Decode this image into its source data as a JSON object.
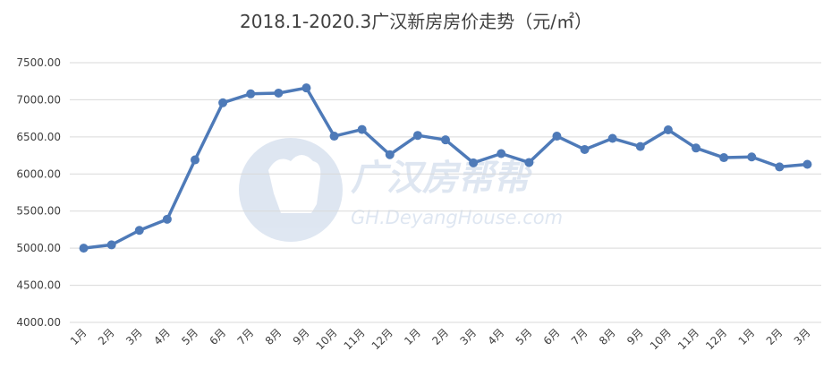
{
  "chart_data": {
    "type": "line",
    "title": "2018.1-2020.3广汉新房房价走势（元/㎡）",
    "xlabel": "",
    "ylabel": "",
    "categories": [
      "1月",
      "2月",
      "3月",
      "4月",
      "5月",
      "6月",
      "7月",
      "8月",
      "9月",
      "10月",
      "11月",
      "12月",
      "1月",
      "2月",
      "3月",
      "4月",
      "5月",
      "6月",
      "7月",
      "8月",
      "9月",
      "10月",
      "11月",
      "12月",
      "1月",
      "2月",
      "3月"
    ],
    "series": [
      {
        "values": [
          5000,
          5045,
          5240,
          5390,
          6190,
          6960,
          7080,
          7090,
          7160,
          6510,
          6600,
          6260,
          6520,
          6460,
          6150,
          6275,
          6155,
          6510,
          6330,
          6480,
          6370,
          6595,
          6350,
          6220,
          6230,
          6095,
          6130
        ]
      }
    ],
    "y_ticks": [
      "4000.00",
      "4500.00",
      "5000.00",
      "5500.00",
      "6000.00",
      "6500.00",
      "7000.00",
      "7500.00"
    ],
    "ylim": [
      4000,
      7500
    ],
    "grid": true,
    "color": "#4e7ab8"
  },
  "watermark": {
    "name": "广汉房帮帮",
    "url": "GH.DeyangHouse.com"
  }
}
